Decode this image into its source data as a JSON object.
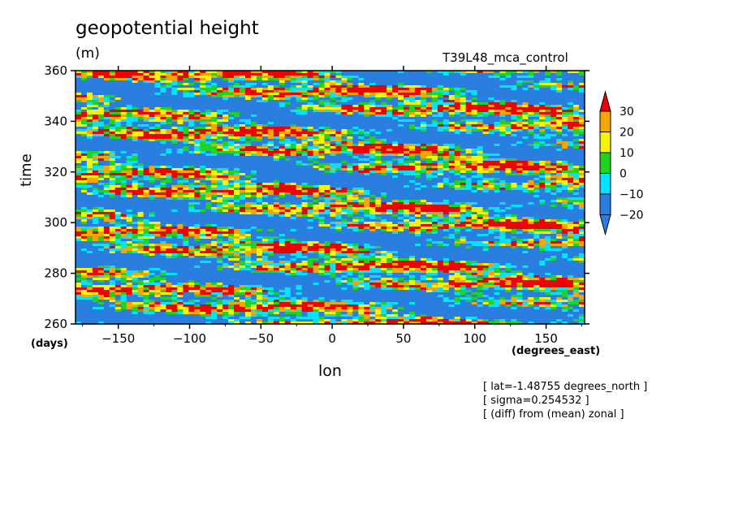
{
  "chart_data": {
    "type": "heatmap",
    "title": "geopotential height",
    "units": "(m)",
    "run_label": "T39L48_mca_control",
    "xlabel": "lon",
    "ylabel": "time",
    "x_units": "(degrees_east)",
    "y_units": "(days)",
    "xlim": [
      -180,
      177
    ],
    "ylim": [
      260,
      360
    ],
    "x_ticks": [
      "-150",
      "-100",
      "-50",
      "0",
      "50",
      "100",
      "150"
    ],
    "x_tick_values": [
      -150,
      -100,
      -50,
      0,
      50,
      100,
      150
    ],
    "y_ticks": [
      "260",
      "280",
      "300",
      "320",
      "340",
      "360"
    ],
    "y_tick_values": [
      260,
      280,
      300,
      320,
      340,
      360
    ],
    "colorbar": {
      "levels": [
        "30",
        "20",
        "10",
        "0",
        "-10",
        "-20"
      ],
      "level_values": [
        30,
        20,
        10,
        0,
        -10,
        -20
      ],
      "colors": [
        "#2a7ee0",
        "#00e5ff",
        "#21d321",
        "#f6f600",
        "#f7a500",
        "#f00000"
      ]
    },
    "notes": [
      "[ lat=-1.48755 degrees_north ]",
      "[ sigma=0.254532 ]",
      "[ (diff) from (mean) zonal ]"
    ]
  }
}
